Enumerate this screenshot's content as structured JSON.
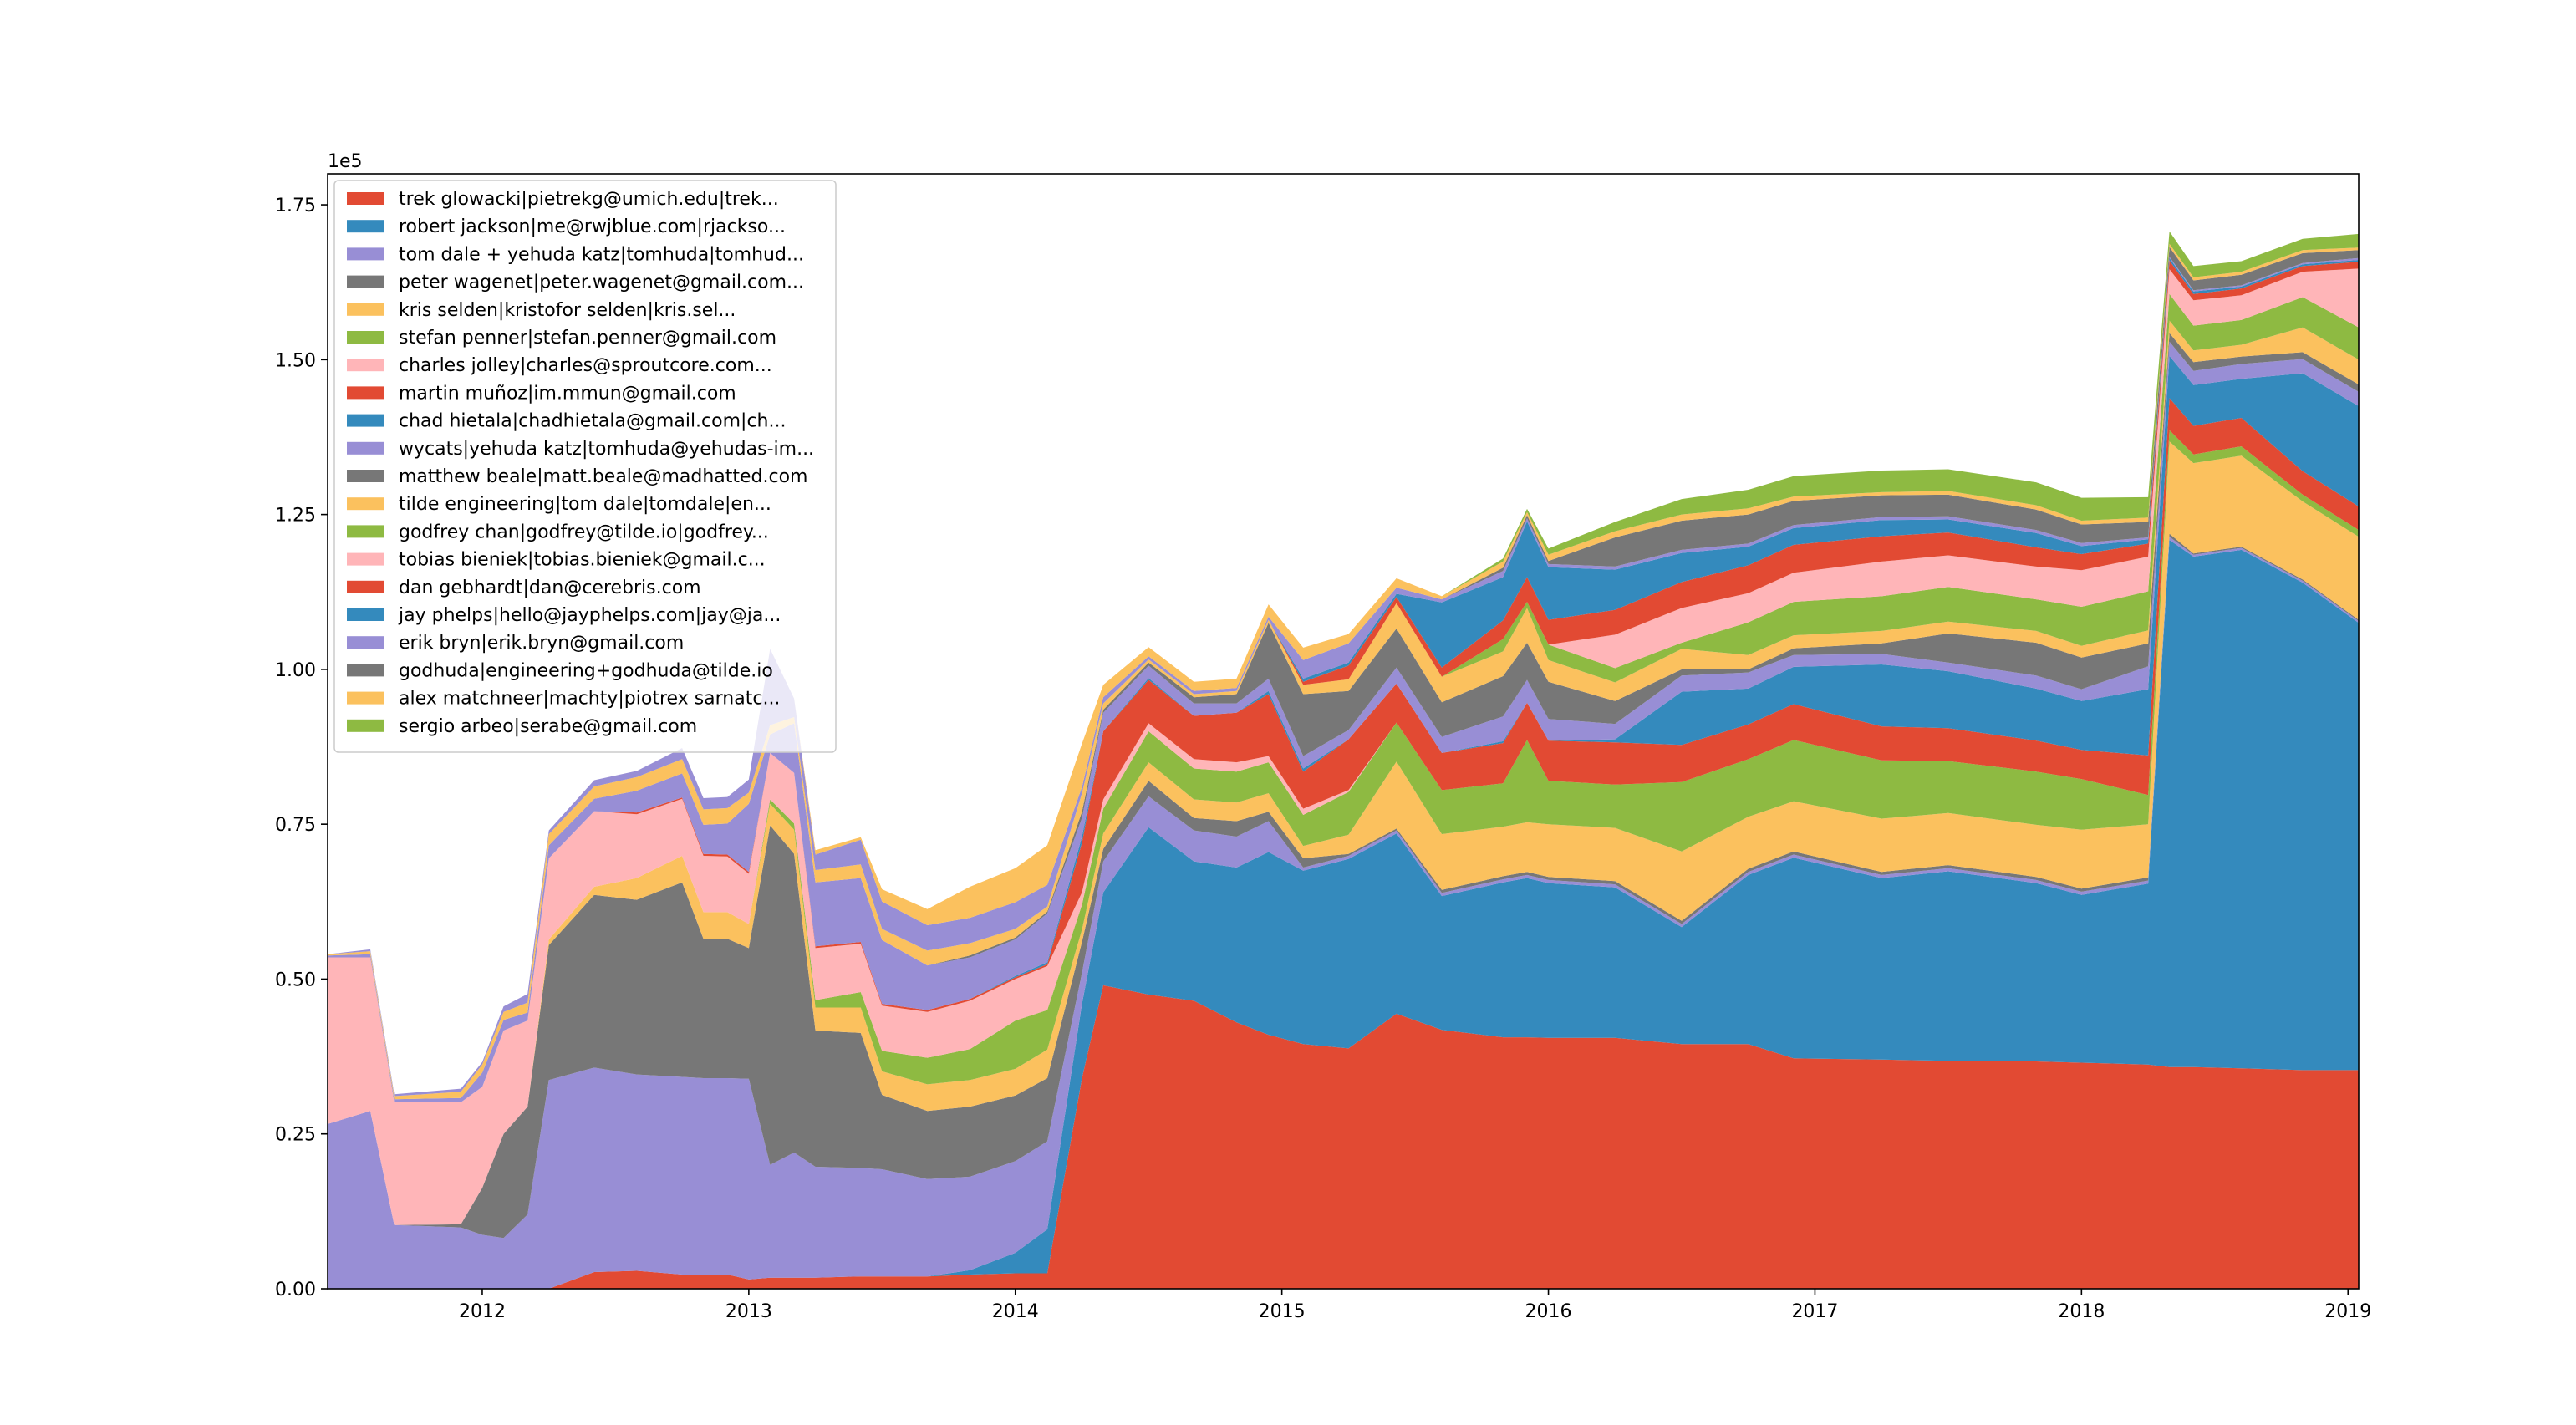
{
  "chart_data": {
    "type": "area",
    "stacked": true,
    "title": "",
    "xlabel": "",
    "ylabel": "",
    "y_offset_label": "1e5",
    "xlim": [
      2011.42,
      2019.04
    ],
    "ylim": [
      0,
      1.8
    ],
    "x_ticks": [
      "2012",
      "2013",
      "2014",
      "2015",
      "2016",
      "2017",
      "2018",
      "2019"
    ],
    "y_ticks": [
      "0.00",
      "0.25",
      "0.50",
      "0.75",
      "1.00",
      "1.25",
      "1.50",
      "1.75"
    ],
    "grid": false,
    "legend_placement": "top-left",
    "x": [
      2011.42,
      2011.58,
      2011.67,
      2011.92,
      2012.0,
      2012.08,
      2012.17,
      2012.25,
      2012.42,
      2012.58,
      2012.75,
      2012.83,
      2012.92,
      2013.0,
      2013.08,
      2013.17,
      2013.25,
      2013.42,
      2013.5,
      2013.67,
      2013.83,
      2014.0,
      2014.12,
      2014.25,
      2014.33,
      2014.5,
      2014.67,
      2014.83,
      2014.95,
      2015.08,
      2015.25,
      2015.43,
      2015.6,
      2015.83,
      2015.92,
      2016.0,
      2016.25,
      2016.5,
      2016.75,
      2016.92,
      2017.25,
      2017.5,
      2017.83,
      2018.0,
      2018.25,
      2018.33,
      2018.42,
      2018.6,
      2018.83,
      2019.04
    ],
    "series": [
      {
        "name": "trek glowacki|pietrekg@umich.edu|trek...",
        "color": "#E24A33",
        "values": [
          0,
          0,
          0,
          0,
          0,
          0,
          0,
          0,
          0.027,
          0.029,
          0.023,
          0.023,
          0.023,
          0.015,
          0.018,
          0.018,
          0.018,
          0.02,
          0.02,
          0.02,
          0.023,
          0.025,
          0.025,
          0.34,
          0.49,
          0.475,
          0.465,
          0.43,
          0.41,
          0.395,
          0.388,
          0.444,
          0.418,
          0.406,
          0.406,
          0.405,
          0.405,
          0.395,
          0.395,
          0.372,
          0.37,
          0.368,
          0.367,
          0.365,
          0.362,
          0.358,
          0.358,
          0.356,
          0.353,
          0.353
        ]
      },
      {
        "name": "robert jackson|me@rwjblue.com|rjackso...",
        "color": "#348ABD",
        "values": [
          0,
          0,
          0,
          0,
          0,
          0,
          0,
          0,
          0,
          0,
          0,
          0,
          0,
          0,
          0,
          0,
          0,
          0,
          0,
          0,
          0.007,
          0.033,
          0.071,
          0.12,
          0.15,
          0.27,
          0.225,
          0.25,
          0.295,
          0.28,
          0.306,
          0.291,
          0.216,
          0.25,
          0.257,
          0.25,
          0.243,
          0.189,
          0.273,
          0.324,
          0.293,
          0.306,
          0.288,
          0.271,
          0.292,
          0.851,
          0.824,
          0.837,
          0.787,
          0.722
        ]
      },
      {
        "name": "tom dale + yehuda katz|tomhuda|tomhud...",
        "color": "#988ED5",
        "values": [
          0.266,
          0.287,
          0.103,
          0.099,
          0.087,
          0.082,
          0.12,
          0.337,
          0.33,
          0.317,
          0.319,
          0.317,
          0.317,
          0.324,
          0.182,
          0.202,
          0.179,
          0.175,
          0.173,
          0.157,
          0.151,
          0.148,
          0.142,
          0.05,
          0.05,
          0.05,
          0.05,
          0.05,
          0.05,
          0.005,
          0.005,
          0.005,
          0.005,
          0.005,
          0.005,
          0.005,
          0.005,
          0.005,
          0.005,
          0.005,
          0.005,
          0.005,
          0.005,
          0.005,
          0.005,
          0.005,
          0.003,
          0.003,
          0.003,
          0.003
        ]
      },
      {
        "name": "peter wagenet|peter.wagenet@gmail.com...",
        "color": "#777777",
        "values": [
          0,
          0,
          0,
          0.005,
          0.076,
          0.168,
          0.174,
          0.218,
          0.279,
          0.282,
          0.314,
          0.225,
          0.225,
          0.211,
          0.548,
          0.482,
          0.22,
          0.218,
          0.12,
          0.11,
          0.113,
          0.106,
          0.102,
          0.05,
          0.02,
          0.025,
          0.02,
          0.025,
          0.015,
          0.015,
          0.003,
          0.003,
          0.005,
          0.005,
          0.005,
          0.005,
          0.005,
          0.005,
          0.005,
          0.005,
          0.005,
          0.005,
          0.005,
          0.005,
          0.005,
          0.005,
          0.002,
          0.002,
          0.002,
          0.002
        ]
      },
      {
        "name": "kris selden|kristofor selden|kris.sel...",
        "color": "#FBC15E",
        "values": [
          0,
          0,
          0,
          0,
          0,
          0,
          0,
          0.009,
          0.013,
          0.035,
          0.043,
          0.043,
          0.043,
          0.039,
          0.035,
          0.039,
          0.037,
          0.041,
          0.038,
          0.043,
          0.043,
          0.043,
          0.046,
          0.02,
          0.025,
          0.03,
          0.03,
          0.03,
          0.03,
          0.02,
          0.031,
          0.108,
          0.09,
          0.08,
          0.08,
          0.085,
          0.086,
          0.112,
          0.084,
          0.081,
          0.086,
          0.084,
          0.084,
          0.095,
          0.086,
          0.149,
          0.146,
          0.147,
          0.126,
          0.134
        ]
      },
      {
        "name": "stefan penner|stefan.penner@gmail.com",
        "color": "#8EBA42",
        "values": [
          0,
          0,
          0,
          0,
          0,
          0,
          0,
          0,
          0,
          0,
          0,
          0,
          0,
          0,
          0.007,
          0.01,
          0.012,
          0.025,
          0.033,
          0.043,
          0.05,
          0.078,
          0.064,
          0.04,
          0.04,
          0.05,
          0.05,
          0.05,
          0.05,
          0.05,
          0.069,
          0.063,
          0.071,
          0.07,
          0.133,
          0.07,
          0.07,
          0.112,
          0.093,
          0.099,
          0.094,
          0.084,
          0.086,
          0.082,
          0.047,
          0.018,
          0.014,
          0.015,
          0.011,
          0.011
        ]
      },
      {
        "name": "charles jolley|charles@sproutcore.com...",
        "color": "#FFB5B8",
        "values": [
          0.269,
          0.248,
          0.198,
          0.197,
          0.163,
          0.167,
          0.139,
          0.131,
          0.122,
          0.103,
          0.092,
          0.091,
          0.09,
          0.081,
          0.075,
          0.082,
          0.084,
          0.078,
          0.073,
          0.074,
          0.078,
          0.067,
          0.071,
          0.02,
          0.015,
          0.013,
          0.015,
          0.015,
          0.01,
          0.01,
          0.003,
          0,
          0,
          0,
          0,
          0,
          0,
          0,
          0,
          0,
          0,
          0,
          0,
          0,
          0,
          0,
          0,
          0,
          0,
          0
        ]
      },
      {
        "name": "martin muñoz|im.mmun@gmail.com",
        "color": "#E24A33",
        "values": [
          0,
          0,
          0,
          0,
          0,
          0,
          0,
          0,
          0,
          0.003,
          0.002,
          0.003,
          0.003,
          0.003,
          0,
          0,
          0.003,
          0.003,
          0.003,
          0.003,
          0.003,
          0.003,
          0.003,
          0.08,
          0.11,
          0.07,
          0.07,
          0.08,
          0.1,
          0.06,
          0.082,
          0.063,
          0.06,
          0.065,
          0.06,
          0.065,
          0.068,
          0.06,
          0.056,
          0.058,
          0.055,
          0.053,
          0.05,
          0.047,
          0.064,
          0.052,
          0.046,
          0.046,
          0.038,
          0.038
        ]
      },
      {
        "name": "chad hietala|chadhietala@gmail.com|ch...",
        "color": "#348ABD",
        "values": [
          0,
          0,
          0,
          0,
          0,
          0,
          0,
          0,
          0,
          0,
          0,
          0,
          0,
          0,
          0,
          0,
          0,
          0,
          0,
          0,
          0,
          0.002,
          0.003,
          0.01,
          0,
          0.003,
          0,
          0,
          0.005,
          0.005,
          0,
          0,
          0,
          0.003,
          0,
          0,
          0.005,
          0.086,
          0.058,
          0.06,
          0.1,
          0.092,
          0.084,
          0.079,
          0.107,
          0.068,
          0.066,
          0.063,
          0.158,
          0.162
        ]
      },
      {
        "name": "wycats|yehuda katz|tomhuda@yehudas-im...",
        "color": "#988ED5",
        "values": [
          0.003,
          0.005,
          0.005,
          0.007,
          0.023,
          0.017,
          0.013,
          0.021,
          0.02,
          0.035,
          0.039,
          0.047,
          0.05,
          0.11,
          0.03,
          0.08,
          0.103,
          0.103,
          0.103,
          0.072,
          0.067,
          0.059,
          0.079,
          0.03,
          0.03,
          0.02,
          0.02,
          0.015,
          0.02,
          0.02,
          0.015,
          0.026,
          0.026,
          0.04,
          0.037,
          0.035,
          0.025,
          0.026,
          0.026,
          0.019,
          0.017,
          0.014,
          0.021,
          0.019,
          0.037,
          0.023,
          0.023,
          0.024,
          0.023,
          0.023
        ]
      },
      {
        "name": "matthew beale|matt.beale@madhatted.com",
        "color": "#777777",
        "values": [
          0,
          0,
          0,
          0,
          0,
          0,
          0,
          0,
          0,
          0,
          0,
          0,
          0,
          0,
          0,
          0,
          0,
          0,
          0,
          0,
          0.003,
          0.003,
          0.003,
          0.01,
          0.005,
          0.005,
          0.01,
          0.015,
          0.09,
          0.1,
          0.063,
          0.063,
          0.056,
          0.065,
          0.06,
          0.06,
          0.037,
          0.01,
          0.005,
          0.011,
          0.017,
          0.047,
          0.053,
          0.051,
          0.037,
          0.014,
          0.014,
          0.012,
          0.011,
          0.012
        ]
      },
      {
        "name": "tilde engineering|tom dale|tomdale|en...",
        "color": "#FBC15E",
        "values": [
          0.002,
          0.005,
          0.005,
          0.01,
          0.013,
          0.013,
          0.016,
          0.018,
          0.02,
          0.022,
          0.023,
          0.025,
          0.025,
          0.018,
          0.015,
          0.01,
          0.02,
          0.022,
          0.018,
          0.024,
          0.02,
          0.014,
          0.008,
          0.03,
          0.01,
          0.005,
          0.005,
          0.005,
          0.005,
          0.015,
          0.019,
          0.041,
          0.041,
          0.04,
          0.056,
          0.035,
          0.03,
          0.033,
          0.023,
          0.021,
          0.02,
          0.019,
          0.019,
          0.019,
          0.021,
          0.02,
          0.019,
          0.019,
          0.04,
          0.04
        ]
      },
      {
        "name": "godfrey chan|godfrey@tilde.io|godfrey...",
        "color": "#8EBA42",
        "values": [
          0,
          0,
          0,
          0,
          0,
          0,
          0,
          0,
          0,
          0,
          0,
          0,
          0,
          0,
          0,
          0,
          0,
          0,
          0,
          0,
          0,
          0,
          0,
          0,
          0,
          0,
          0,
          0,
          0,
          0,
          0,
          0,
          0,
          0.02,
          0.01,
          0.025,
          0.023,
          0.01,
          0.053,
          0.054,
          0.056,
          0.056,
          0.051,
          0.063,
          0.063,
          0.043,
          0.04,
          0.04,
          0.049,
          0.052
        ]
      },
      {
        "name": "tobias bieniek|tobias.bieniek@gmail.c...",
        "color": "#FFB5B8",
        "values": [
          0,
          0,
          0,
          0,
          0,
          0,
          0,
          0,
          0,
          0,
          0,
          0,
          0,
          0,
          0,
          0,
          0,
          0,
          0,
          0,
          0,
          0,
          0,
          0,
          0,
          0,
          0,
          0,
          0,
          0,
          0,
          0,
          0,
          0,
          0,
          0,
          0.054,
          0.056,
          0.047,
          0.047,
          0.056,
          0.051,
          0.053,
          0.059,
          0.056,
          0.04,
          0.041,
          0.04,
          0.041,
          0.095
        ]
      },
      {
        "name": "dan gebhardt|dan@cerebris.com",
        "color": "#E24A33",
        "values": [
          0,
          0,
          0,
          0,
          0,
          0,
          0,
          0,
          0,
          0,
          0,
          0,
          0,
          0,
          0,
          0,
          0,
          0,
          0,
          0,
          0,
          0,
          0,
          0,
          0,
          0,
          0,
          0,
          0,
          0.005,
          0.022,
          0.01,
          0.015,
          0.03,
          0.04,
          0.04,
          0.04,
          0.042,
          0.045,
          0.045,
          0.041,
          0.037,
          0.031,
          0.026,
          0.021,
          0.014,
          0.01,
          0.011,
          0.009,
          0.011
        ]
      },
      {
        "name": "jay phelps|hello@jayphelps.com|jay@ja...",
        "color": "#348ABD",
        "values": [
          0,
          0,
          0,
          0,
          0,
          0,
          0,
          0,
          0,
          0,
          0,
          0,
          0,
          0,
          0,
          0,
          0,
          0,
          0,
          0,
          0,
          0,
          0,
          0,
          0,
          0,
          0,
          0,
          0,
          0.005,
          0.005,
          0.005,
          0.105,
          0.07,
          0.09,
          0.085,
          0.065,
          0.047,
          0.03,
          0.027,
          0.026,
          0.021,
          0.023,
          0.013,
          0.007,
          0.004,
          0.004,
          0.003,
          0.003,
          0.003
        ]
      },
      {
        "name": "erik bryn|erik.bryn@gmail.com",
        "color": "#988ED5",
        "values": [
          0,
          0.003,
          0.003,
          0.005,
          0.004,
          0.009,
          0.014,
          0.006,
          0.01,
          0.01,
          0.018,
          0.018,
          0.018,
          0.021,
          0.123,
          0.03,
          0.025,
          0.04,
          0.044,
          0.041,
          0.041,
          0.043,
          0.035,
          0.01,
          0.01,
          0.005,
          0.005,
          0.005,
          0.005,
          0.03,
          0.031,
          0.01,
          0.005,
          0.01,
          0.005,
          0.005,
          0.005,
          0.005,
          0.005,
          0.005,
          0.005,
          0.005,
          0.005,
          0.005,
          0.003,
          0.002,
          0.002,
          0.002,
          0.002,
          0.003
        ]
      },
      {
        "name": "godhuda|engineering+godhuda@tilde.io",
        "color": "#777777",
        "values": [
          0,
          0,
          0,
          0,
          0,
          0,
          0,
          0,
          0,
          0,
          0,
          0,
          0,
          0,
          0,
          0,
          0,
          0,
          0,
          0,
          0,
          0,
          0,
          0,
          0,
          0,
          0,
          0,
          0,
          0,
          0,
          0,
          0,
          0.005,
          0.005,
          0.005,
          0.047,
          0.047,
          0.047,
          0.039,
          0.035,
          0.035,
          0.033,
          0.03,
          0.025,
          0.016,
          0.016,
          0.017,
          0.016,
          0.013
        ]
      },
      {
        "name": "alex matchneer|machty|piotrex sarnatc...",
        "color": "#FBC15E",
        "values": [
          0,
          0,
          0,
          0,
          0,
          0,
          0,
          0,
          0,
          0,
          0,
          0,
          0,
          0,
          0,
          0,
          0.007,
          0.004,
          0.02,
          0.026,
          0.05,
          0.055,
          0.064,
          0.07,
          0.02,
          0.015,
          0.015,
          0.015,
          0.02,
          0.02,
          0.015,
          0.015,
          0.005,
          0.01,
          0.005,
          0.01,
          0.01,
          0.01,
          0.01,
          0.007,
          0.005,
          0.006,
          0.007,
          0.006,
          0.007,
          0.005,
          0.005,
          0.005,
          0.005,
          0.004
        ]
      },
      {
        "name": "sergio arbeo|serabe@gmail.com",
        "color": "#8EBA42",
        "values": [
          0,
          0,
          0,
          0,
          0,
          0,
          0,
          0,
          0,
          0,
          0,
          0,
          0,
          0,
          0,
          0,
          0,
          0,
          0,
          0,
          0,
          0,
          0,
          0,
          0,
          0,
          0,
          0,
          0,
          0,
          0,
          0,
          0,
          0.005,
          0.005,
          0.01,
          0.015,
          0.025,
          0.03,
          0.033,
          0.035,
          0.035,
          0.037,
          0.037,
          0.033,
          0.02,
          0.018,
          0.017,
          0.018,
          0.022
        ]
      }
    ]
  }
}
